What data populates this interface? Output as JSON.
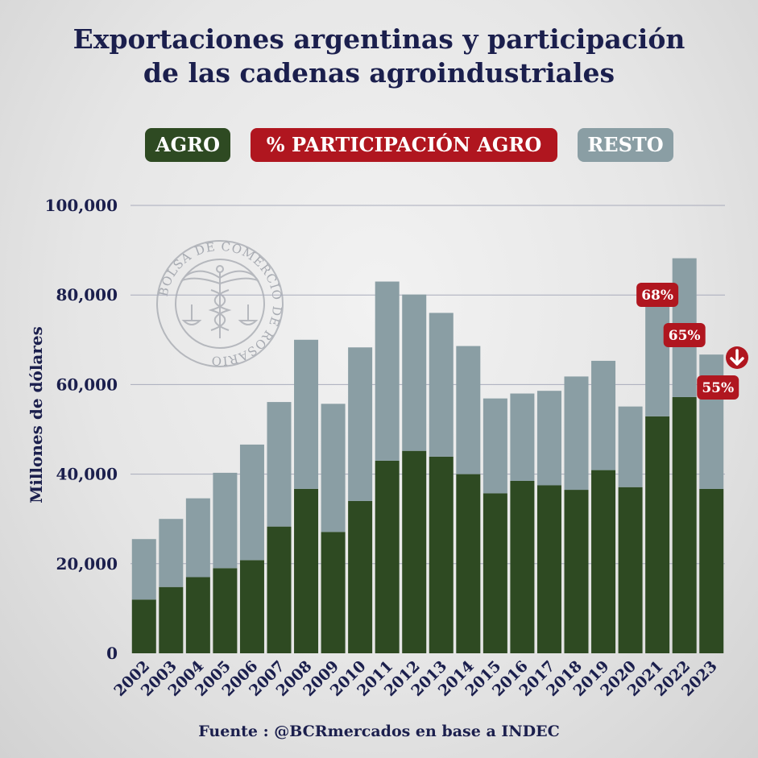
{
  "title_lines": [
    "Exportaciones argentinas y participación",
    "de las cadenas agroindustriales"
  ],
  "legend": [
    {
      "label": "AGRO",
      "color": "#2e4a22"
    },
    {
      "label": "% PARTICIPACIÓN AGRO",
      "color": "#b0161f"
    },
    {
      "label": "RESTO",
      "color": "#8a9ea4"
    }
  ],
  "source": "Fuente : @BCRmercados en base a INDEC",
  "watermark": {
    "text": "BOLSA DE COMERCIO DE ROSARIO"
  },
  "colors": {
    "agro": "#2e4a22",
    "resto": "#8a9ea4",
    "accent": "#b0161f",
    "text": "#1b1f4d"
  },
  "chart_data": {
    "type": "bar",
    "stacked": true,
    "ylabel": "Millones de dólares",
    "ylim": [
      0,
      100000
    ],
    "yticks": [
      0,
      20000,
      40000,
      60000,
      80000,
      100000
    ],
    "ytick_labels": [
      "0",
      "20,000",
      "40,000",
      "60,000",
      "80,000",
      "100,000"
    ],
    "grid": true,
    "categories": [
      "2002",
      "2003",
      "2004",
      "2005",
      "2006",
      "2007",
      "2008",
      "2009",
      "2010",
      "2011",
      "2012",
      "2013",
      "2014",
      "2015",
      "2016",
      "2017",
      "2018",
      "2019",
      "2020",
      "2021",
      "2022",
      "2023"
    ],
    "series": [
      {
        "name": "AGRO",
        "values": [
          12000,
          14800,
          17000,
          19000,
          20800,
          28300,
          36700,
          27100,
          34000,
          43000,
          45200,
          43900,
          40000,
          35700,
          38500,
          37500,
          36500,
          40900,
          37100,
          52900,
          57200,
          36700
        ]
      },
      {
        "name": "RESTO",
        "values": [
          13500,
          15200,
          17600,
          21300,
          25800,
          27800,
          33300,
          28600,
          34300,
          40000,
          34900,
          32100,
          28600,
          21200,
          19500,
          21100,
          25300,
          24400,
          18000,
          25200,
          31000,
          30000
        ]
      }
    ],
    "annotations": [
      {
        "category": "2021",
        "label": "68%"
      },
      {
        "category": "2022",
        "label": "65%"
      },
      {
        "category": "2023",
        "label": "55%",
        "trend": "down"
      }
    ]
  }
}
